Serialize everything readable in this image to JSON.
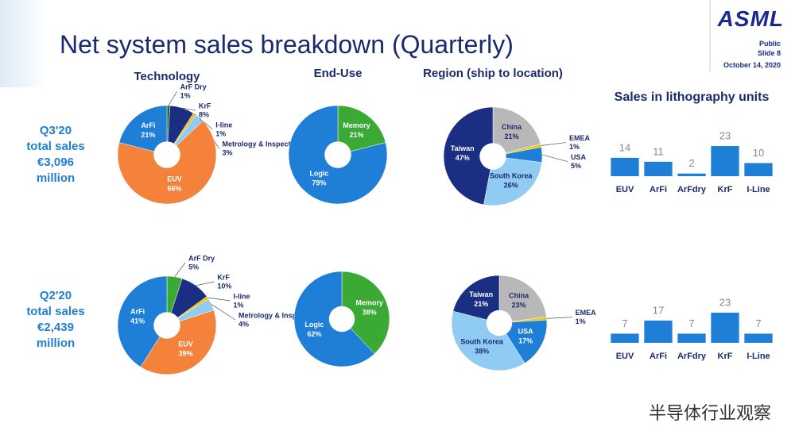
{
  "slide": {
    "title": "Net system sales breakdown (Quarterly)",
    "logo": "ASML",
    "classification": "Public",
    "slide_number": "Slide 8",
    "date": "October 14, 2020",
    "row_labels": [
      [
        "Q3'20",
        "total sales",
        "€3,096",
        "million"
      ],
      [
        "Q2'20",
        "total sales",
        "€2,439",
        "million"
      ]
    ],
    "watermark": "半导体行业观察"
  },
  "chart_data": [
    {
      "type": "pie",
      "title": "Technology",
      "categories": [
        "ArF Dry",
        "KrF",
        "I-line",
        "Metrology & Inspection",
        "EUV",
        "ArFi"
      ],
      "values": [
        1,
        8,
        1,
        3,
        66,
        21
      ],
      "value_labels": [
        "1%",
        "8%",
        "1%",
        "3%",
        "66%",
        "21%"
      ],
      "colors": [
        "#1e6b3a",
        "#1a2e82",
        "#f2c500",
        "#8fcbf2",
        "#f4823b",
        "#1f7fd6"
      ]
    },
    {
      "type": "pie",
      "title": "End-Use",
      "categories": [
        "Memory",
        "Logic"
      ],
      "values": [
        21,
        79
      ],
      "value_labels": [
        "21%",
        "79%"
      ],
      "colors": [
        "#3aaa35",
        "#1f7fd6"
      ]
    },
    {
      "type": "pie",
      "title": "Region (ship to location)",
      "categories": [
        "China",
        "EMEA",
        "USA",
        "South Korea",
        "Taiwan"
      ],
      "values": [
        21,
        1,
        5,
        26,
        47
      ],
      "value_labels": [
        "21%",
        "1%",
        "5%",
        "26%",
        "47%"
      ],
      "colors": [
        "#b8b8b8",
        "#f2c500",
        "#1f7fd6",
        "#8fcbf2",
        "#1a2e82"
      ]
    },
    {
      "type": "bar",
      "title": "Sales in lithography units",
      "categories": [
        "EUV",
        "ArFi",
        "ArFdry",
        "KrF",
        "I-Line"
      ],
      "values": [
        14,
        11,
        2,
        23,
        10
      ],
      "color": "#1f7fd6"
    },
    {
      "type": "pie",
      "categories": [
        "ArF Dry",
        "KrF",
        "I-line",
        "Metrology & Inspection",
        "EUV",
        "ArFi"
      ],
      "values": [
        5,
        10,
        1,
        4,
        39,
        41
      ],
      "value_labels": [
        "5%",
        "10%",
        "1%",
        "4%",
        "39%",
        "41%"
      ],
      "colors": [
        "#3aaa35",
        "#1a2e82",
        "#f2c500",
        "#8fcbf2",
        "#f4823b",
        "#1f7fd6"
      ]
    },
    {
      "type": "pie",
      "categories": [
        "Memory",
        "Logic"
      ],
      "values": [
        38,
        62
      ],
      "value_labels": [
        "38%",
        "62%"
      ],
      "colors": [
        "#3aaa35",
        "#1f7fd6"
      ]
    },
    {
      "type": "pie",
      "categories": [
        "China",
        "EMEA",
        "USA",
        "South Korea",
        "Taiwan"
      ],
      "values": [
        23,
        1,
        17,
        38,
        21
      ],
      "value_labels": [
        "23%",
        "1%",
        "17%",
        "38%",
        "21%"
      ],
      "colors": [
        "#b8b8b8",
        "#f2c500",
        "#1f7fd6",
        "#8fcbf2",
        "#1a2e82"
      ]
    },
    {
      "type": "bar",
      "categories": [
        "EUV",
        "ArFi",
        "ArFdry",
        "KrF",
        "I-Line"
      ],
      "values": [
        7,
        17,
        7,
        23,
        7
      ],
      "color": "#1f7fd6"
    }
  ]
}
